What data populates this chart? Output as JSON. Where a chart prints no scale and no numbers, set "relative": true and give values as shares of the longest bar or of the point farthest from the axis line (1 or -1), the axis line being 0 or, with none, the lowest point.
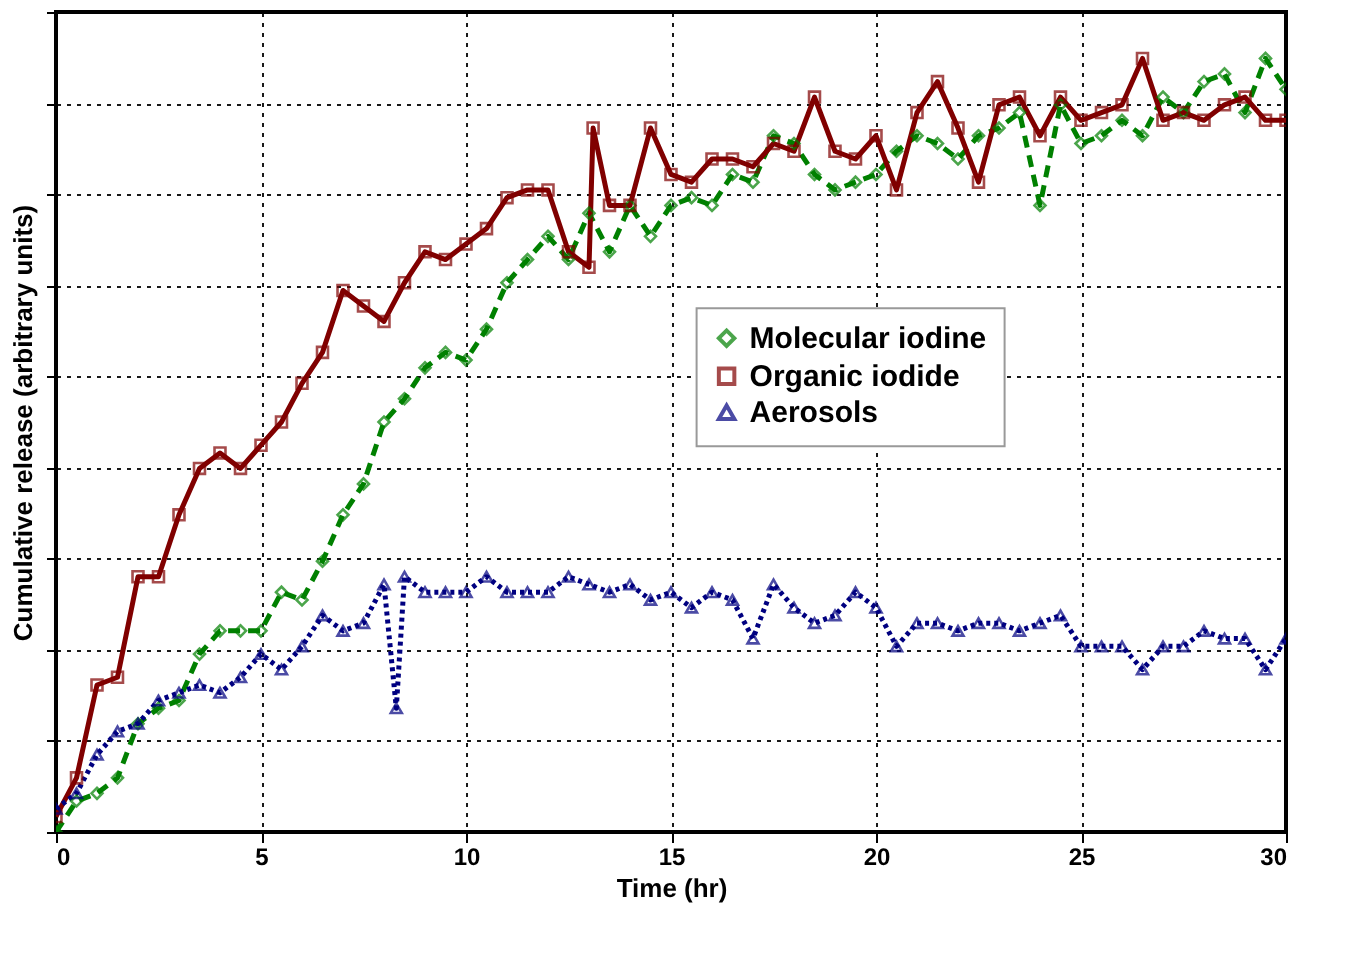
{
  "chart_data": {
    "type": "line",
    "relative": true,
    "xlabel": "Time (hr)",
    "ylabel": "Cumulative release (arbitrary units)",
    "xlim": [
      0,
      30
    ],
    "xticks": [
      0,
      5,
      10,
      15,
      20,
      25,
      30
    ],
    "grid": true,
    "legend": "right",
    "tick_labels": "x",
    "series": [
      {
        "name": "Molecular iodine",
        "color": "#008000",
        "marker": "diamond",
        "line_style": "dashed",
        "x": [
          0,
          0.5,
          1,
          1.5,
          2,
          2.5,
          3,
          3.5,
          4,
          4.5,
          5,
          5.5,
          6,
          6.5,
          7,
          7.5,
          8,
          8.5,
          9,
          9.5,
          10,
          10.5,
          11,
          11.5,
          12,
          12.5,
          13,
          13.5,
          14,
          14.5,
          15,
          15.5,
          16,
          16.5,
          17,
          17.5,
          18,
          18.5,
          19,
          19.5,
          20,
          20.5,
          21,
          21.5,
          22,
          22.5,
          23,
          23.5,
          24,
          24.5,
          25,
          25.5,
          26,
          26.5,
          27,
          27.5,
          28,
          28.5,
          29,
          29.5,
          30
        ],
        "values": [
          0,
          0.04,
          0.05,
          0.07,
          0.14,
          0.16,
          0.17,
          0.23,
          0.26,
          0.26,
          0.26,
          0.31,
          0.3,
          0.35,
          0.41,
          0.45,
          0.53,
          0.56,
          0.6,
          0.62,
          0.61,
          0.65,
          0.71,
          0.74,
          0.77,
          0.74,
          0.8,
          0.75,
          0.81,
          0.77,
          0.81,
          0.82,
          0.81,
          0.85,
          0.84,
          0.9,
          0.89,
          0.85,
          0.83,
          0.84,
          0.85,
          0.88,
          0.9,
          0.89,
          0.87,
          0.9,
          0.91,
          0.93,
          0.81,
          0.94,
          0.89,
          0.9,
          0.92,
          0.9,
          0.95,
          0.93,
          0.97,
          0.98,
          0.93,
          1.0,
          0.96
        ]
      },
      {
        "name": "Organic iodide",
        "color": "#800000",
        "marker": "square",
        "line_style": "solid",
        "x": [
          0,
          0.5,
          1,
          1.5,
          2,
          2.5,
          3,
          3.5,
          4,
          4.5,
          5,
          5.5,
          6,
          6.5,
          7,
          7.5,
          8,
          8.5,
          9,
          9.5,
          10,
          10.5,
          11,
          11.5,
          12,
          12.5,
          13,
          13.1,
          13.5,
          14,
          14.5,
          15,
          15.5,
          16,
          16.5,
          17,
          17.5,
          18,
          18.5,
          19,
          19.5,
          20,
          20.5,
          21,
          21.5,
          22,
          22.5,
          23,
          23.5,
          24,
          24.5,
          25,
          25.5,
          26,
          26.5,
          27,
          27.5,
          28,
          28.5,
          29,
          29.5,
          30
        ],
        "values": [
          0.02,
          0.07,
          0.19,
          0.2,
          0.33,
          0.33,
          0.41,
          0.47,
          0.49,
          0.47,
          0.5,
          0.53,
          0.58,
          0.62,
          0.7,
          0.68,
          0.66,
          0.71,
          0.75,
          0.74,
          0.76,
          0.78,
          0.82,
          0.83,
          0.83,
          0.75,
          0.73,
          0.91,
          0.81,
          0.81,
          0.91,
          0.85,
          0.84,
          0.87,
          0.87,
          0.86,
          0.89,
          0.88,
          0.95,
          0.88,
          0.87,
          0.9,
          0.83,
          0.93,
          0.97,
          0.91,
          0.84,
          0.94,
          0.95,
          0.9,
          0.95,
          0.92,
          0.93,
          0.94,
          1.0,
          0.92,
          0.93,
          0.92,
          0.94,
          0.95,
          0.92,
          0.92
        ]
      },
      {
        "name": "Aerosols",
        "color": "#000080",
        "marker": "triangle",
        "line_style": "dotted",
        "x": [
          0,
          0.5,
          1,
          1.5,
          2,
          2.5,
          3,
          3.5,
          4,
          4.5,
          5,
          5.5,
          6,
          6.5,
          7,
          7.5,
          8,
          8.3,
          8.5,
          9,
          9.5,
          10,
          10.5,
          11,
          11.5,
          12,
          12.5,
          13,
          13.5,
          14,
          14.5,
          15,
          15.5,
          16,
          16.5,
          17,
          17.5,
          18,
          18.5,
          19,
          19.5,
          20,
          20.5,
          21,
          21.5,
          22,
          22.5,
          23,
          23.5,
          24,
          24.5,
          25,
          25.5,
          26,
          26.5,
          27,
          27.5,
          28,
          28.5,
          29,
          29.5,
          30
        ],
        "values": [
          0.03,
          0.05,
          0.1,
          0.13,
          0.14,
          0.17,
          0.18,
          0.19,
          0.18,
          0.2,
          0.23,
          0.21,
          0.24,
          0.28,
          0.26,
          0.27,
          0.32,
          0.16,
          0.33,
          0.31,
          0.31,
          0.31,
          0.33,
          0.31,
          0.31,
          0.31,
          0.33,
          0.32,
          0.31,
          0.32,
          0.3,
          0.31,
          0.29,
          0.31,
          0.3,
          0.25,
          0.32,
          0.29,
          0.27,
          0.28,
          0.31,
          0.29,
          0.24,
          0.27,
          0.27,
          0.26,
          0.27,
          0.27,
          0.26,
          0.27,
          0.28,
          0.24,
          0.24,
          0.24,
          0.21,
          0.24,
          0.24,
          0.26,
          0.25,
          0.25,
          0.21,
          0.25
        ]
      }
    ]
  }
}
